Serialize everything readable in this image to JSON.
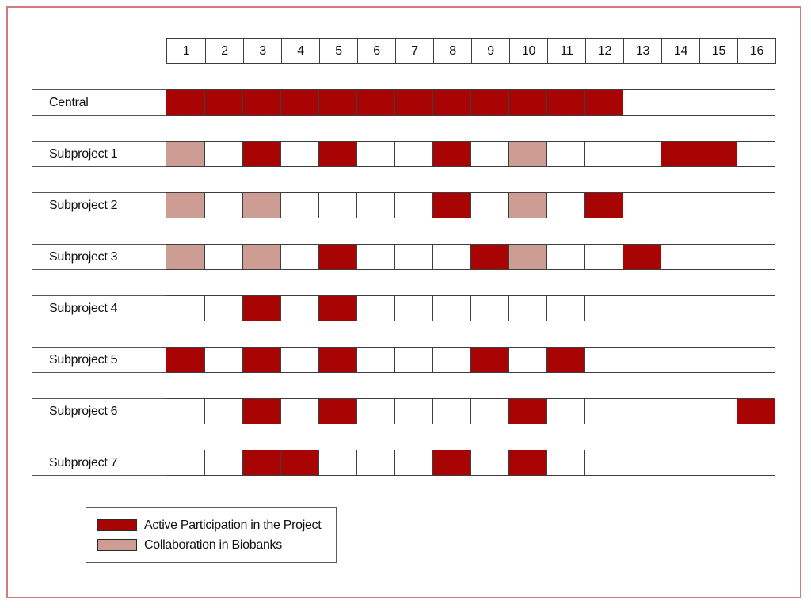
{
  "figure": {
    "frame_border_color": "#d47a7c",
    "grid_border_color": "#3d3d3d",
    "background_color": "#ffffff"
  },
  "chart_data": {
    "type": "heatmap",
    "title": "",
    "xlabel": "",
    "ylabel": "",
    "columns": [
      "1",
      "2",
      "3",
      "4",
      "5",
      "6",
      "7",
      "8",
      "9",
      "10",
      "11",
      "12",
      "13",
      "14",
      "15",
      "16"
    ],
    "rows": [
      {
        "label": "Central",
        "active": [
          1,
          2,
          3,
          4,
          5,
          6,
          7,
          8,
          9,
          10,
          11,
          12
        ],
        "biobank": []
      },
      {
        "label": "Subproject 1",
        "active": [
          3,
          5,
          8,
          14,
          15
        ],
        "biobank": [
          1,
          10
        ]
      },
      {
        "label": "Subproject 2",
        "active": [
          8,
          12
        ],
        "biobank": [
          1,
          3,
          10
        ]
      },
      {
        "label": "Subproject 3",
        "active": [
          5,
          9,
          13
        ],
        "biobank": [
          1,
          3,
          10
        ]
      },
      {
        "label": "Subproject 4",
        "active": [
          3,
          5
        ],
        "biobank": []
      },
      {
        "label": "Subproject 5",
        "active": [
          1,
          3,
          5,
          9,
          11
        ],
        "biobank": []
      },
      {
        "label": "Subproject 6",
        "active": [
          3,
          5,
          10,
          16
        ],
        "biobank": []
      },
      {
        "label": "Subproject 7",
        "active": [
          3,
          4,
          8,
          10
        ],
        "biobank": []
      }
    ],
    "colors": {
      "active": "#a80404",
      "biobank": "#cd9d94",
      "empty": "#ffffff"
    },
    "legend": [
      {
        "key": "active",
        "label": "Active Participation in the Project",
        "color": "#a80404"
      },
      {
        "key": "biobank",
        "label": "Collaboration in Biobanks",
        "color": "#cd9d94"
      }
    ],
    "legend_position": "bottom-left",
    "grid": true
  }
}
